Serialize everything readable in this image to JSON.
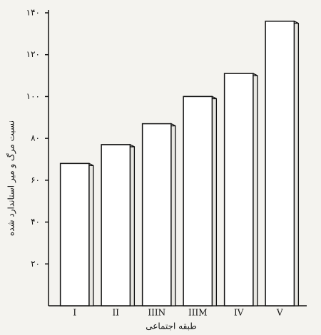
{
  "chart_data": {
    "type": "bar",
    "categories": [
      "I",
      "II",
      "IIIN",
      "IIIM",
      "IV",
      "V"
    ],
    "values": [
      68,
      77,
      87,
      100,
      111,
      136
    ],
    "color": "#ffffff",
    "x_label": "طبقه اجتماعی",
    "y_label": "نسبت مرگ و میر استاندارد شده",
    "ylim": [
      0,
      140
    ],
    "yticks": [
      {
        "value": 20,
        "label": "۲۰"
      },
      {
        "value": 40,
        "label": "۴۰"
      },
      {
        "value": 60,
        "label": "۶۰"
      },
      {
        "value": 80,
        "label": "۸۰"
      },
      {
        "value": 100,
        "label": "۱۰۰"
      },
      {
        "value": 120,
        "label": "۱۲۰"
      },
      {
        "value": 140,
        "label": "۱۴۰"
      }
    ],
    "grid": false
  }
}
